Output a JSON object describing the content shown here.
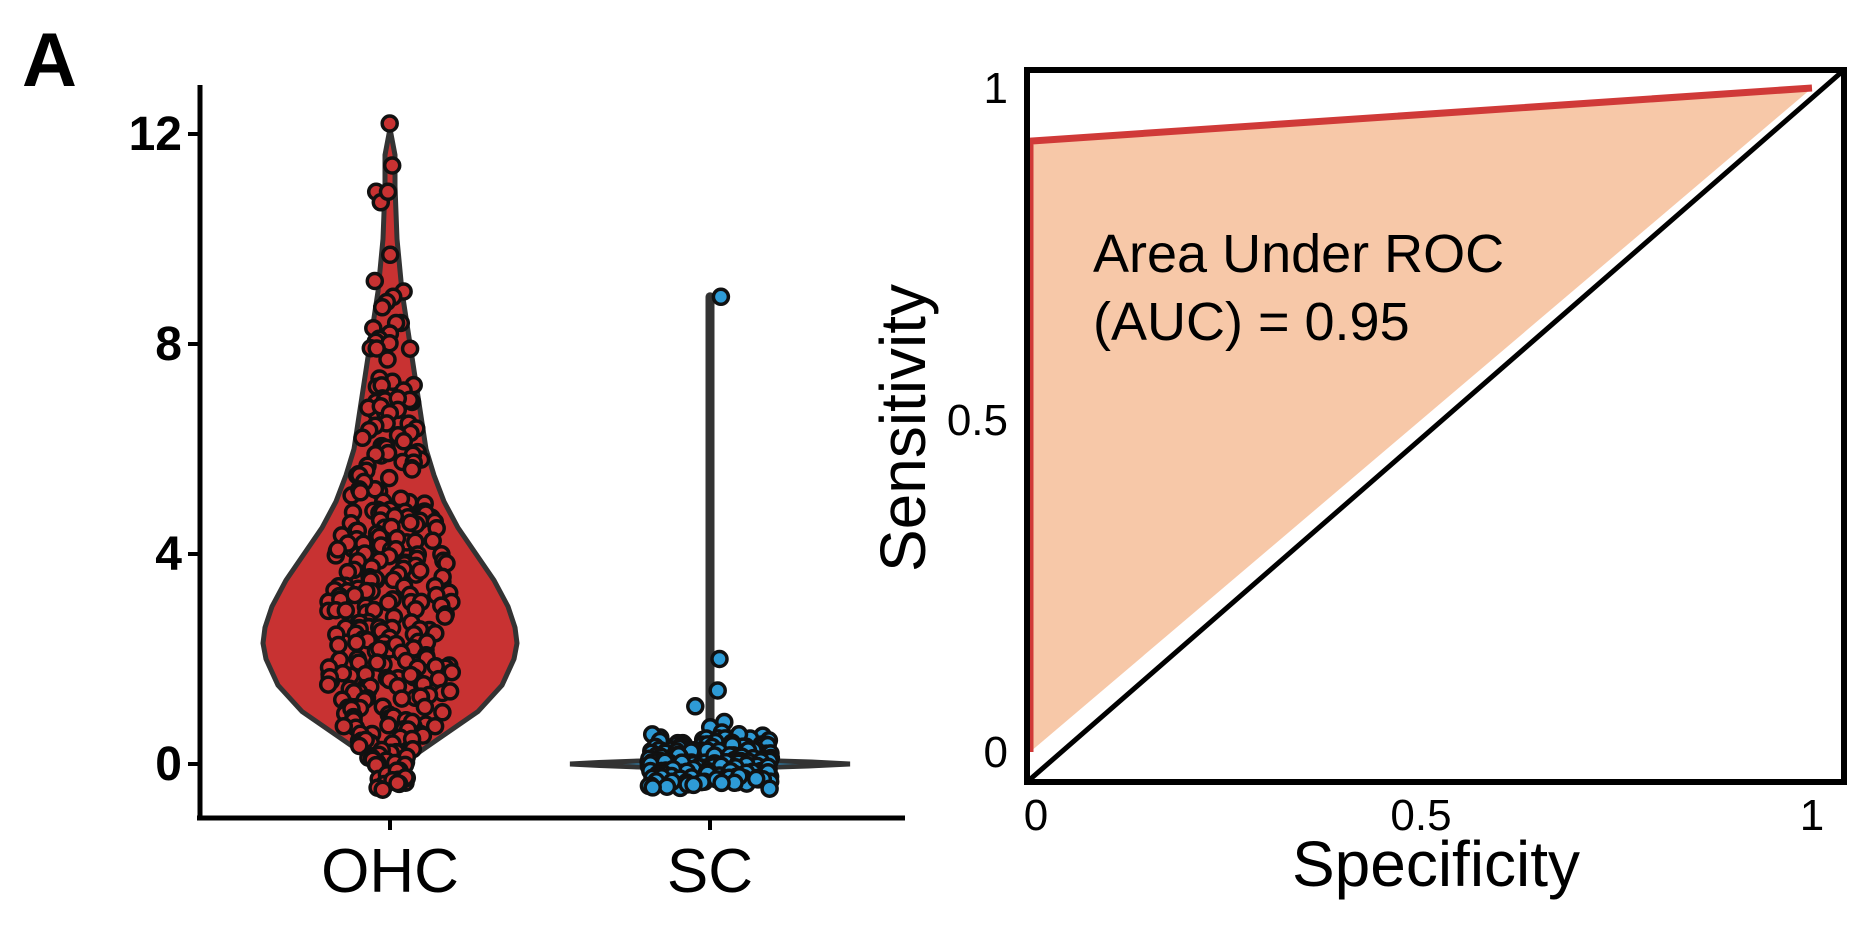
{
  "panel_label": "A",
  "colors": {
    "ohc": "#C83232",
    "sc": "#2E9BD6",
    "violin_edge": "#333333",
    "roc_line": "#D03A38",
    "auc_fill": "#F7C8A8",
    "axis": "#000000"
  },
  "chart_data": [
    {
      "type": "violin",
      "categories": [
        "OHC",
        "SC"
      ],
      "y_ticks": [
        "0",
        "4",
        "8",
        "12"
      ],
      "ylim": [
        -1,
        13
      ],
      "title": "",
      "xlabel": "",
      "ylabel": "",
      "grid": false,
      "series": [
        {
          "name": "OHC",
          "color": "#C83232",
          "violin_max": 12,
          "values": [
            12.2,
            11.4,
            10.9,
            10.7,
            10.9,
            9.7,
            9.2,
            9.0,
            8.9,
            8.8,
            8.7,
            8.4,
            8.4,
            8.3,
            8.2,
            8.1,
            8.0,
            7.8,
            7.3,
            7.2,
            7.0,
            6.9,
            6.8,
            6.7,
            6.5,
            6.3,
            6.2,
            6.1,
            6.0,
            5.9,
            5.8,
            5.7,
            5.6,
            5.5,
            5.3,
            5.2,
            5.0,
            4.9,
            4.8,
            4.7,
            4.6,
            4.5,
            4.4,
            4.3,
            4.2,
            4.1,
            4.0,
            3.9,
            3.8,
            3.7,
            3.6,
            3.5,
            3.4,
            3.3,
            3.2,
            3.1,
            3.0,
            2.9,
            2.8,
            2.7,
            2.6,
            2.5,
            2.4,
            2.3,
            2.2,
            2.1,
            2.0,
            1.9,
            1.8,
            1.7,
            1.6,
            1.5,
            1.4,
            1.3,
            1.2,
            1.1,
            1.0,
            0.9,
            0.8,
            0.7,
            0.6,
            0.5,
            0.4,
            0.3,
            0.2,
            0.1,
            0.0,
            -0.2,
            -0.3,
            -0.4
          ]
        },
        {
          "name": "SC",
          "color": "#2E9BD6",
          "violin_max": 8.9,
          "values": [
            8.9,
            2.0,
            1.4,
            1.1,
            0.8,
            0.7,
            0.6,
            0.5,
            0.4,
            0.3,
            0.3,
            0.2,
            0.2,
            0.1,
            0.1,
            0.0,
            0.0,
            0.0,
            -0.1,
            -0.1,
            -0.2,
            -0.2,
            -0.3,
            -0.3,
            -0.4
          ]
        }
      ]
    },
    {
      "type": "line",
      "title": "",
      "xlabel": "Specificity",
      "ylabel": "Sensitivity",
      "x_ticks": [
        "0",
        "0.5",
        "1"
      ],
      "y_ticks": [
        "0",
        "0.5",
        "1"
      ],
      "xlim": [
        0,
        1
      ],
      "ylim": [
        0,
        1
      ],
      "grid": false,
      "annotation": [
        "Area Under ROC",
        "(AUC) = 0.95"
      ],
      "auc": 0.95,
      "series": [
        {
          "name": "",
          "x": [
            0,
            0,
            1
          ],
          "y": [
            0,
            0.92,
            1
          ],
          "color": "#D03A38"
        }
      ],
      "reference_line": {
        "x": [
          0,
          1
        ],
        "y": [
          0,
          1
        ]
      }
    }
  ]
}
